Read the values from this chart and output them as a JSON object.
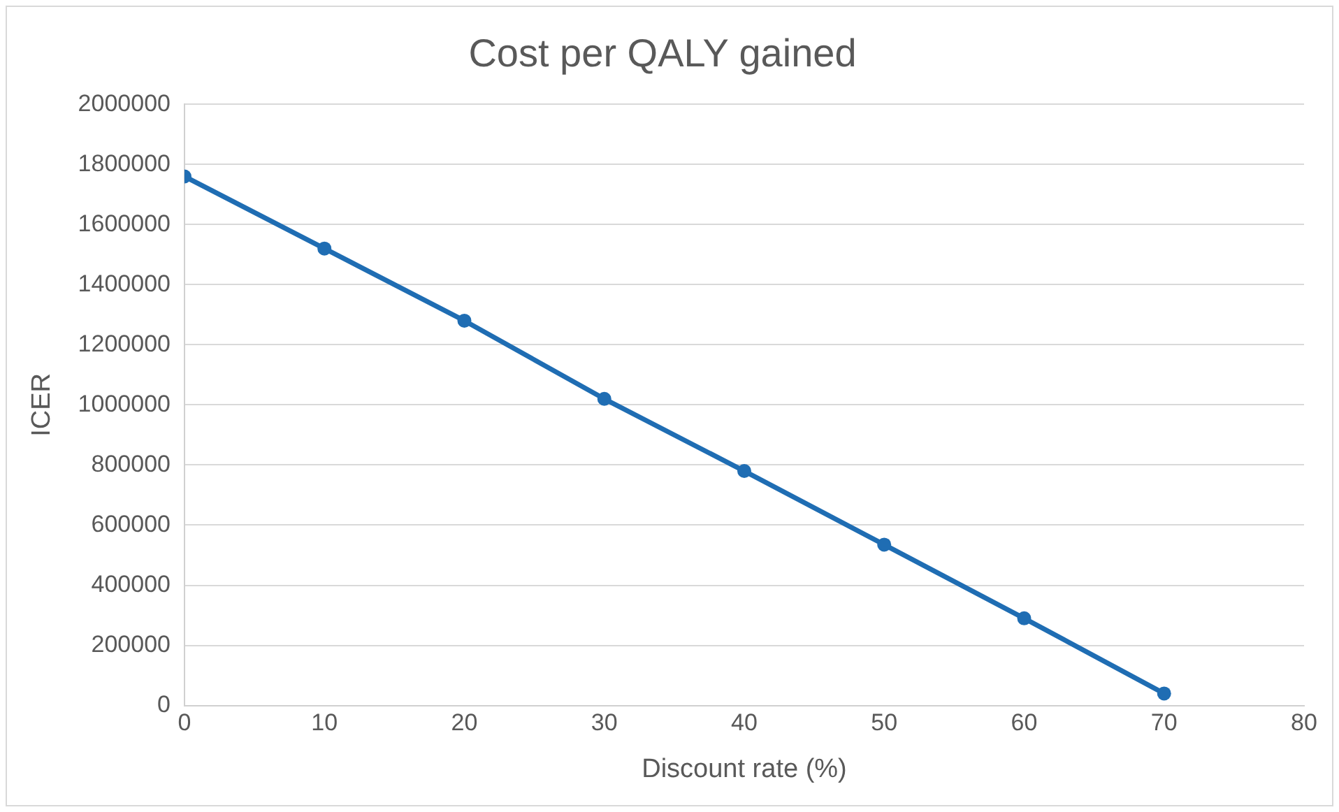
{
  "chart_data": {
    "type": "line",
    "title": "Cost per QALY gained",
    "xlabel": "Discount rate (%)",
    "ylabel": "ICER",
    "x": [
      0,
      10,
      20,
      30,
      40,
      50,
      60,
      70
    ],
    "series": [
      {
        "color": "#1f6db3",
        "values": [
          1760000,
          1520000,
          1280000,
          1020000,
          780000,
          535000,
          290000,
          40000
        ]
      }
    ],
    "xlim": [
      0,
      80
    ],
    "xticks": [
      0,
      10,
      20,
      30,
      40,
      50,
      60,
      70,
      80
    ],
    "ylim": [
      0,
      2000000
    ],
    "yticks": [
      0,
      200000,
      400000,
      600000,
      800000,
      1000000,
      1200000,
      1400000,
      1600000,
      1800000,
      2000000
    ],
    "grid": "y",
    "legend": false,
    "marker": "circle",
    "line_style": "solid"
  }
}
